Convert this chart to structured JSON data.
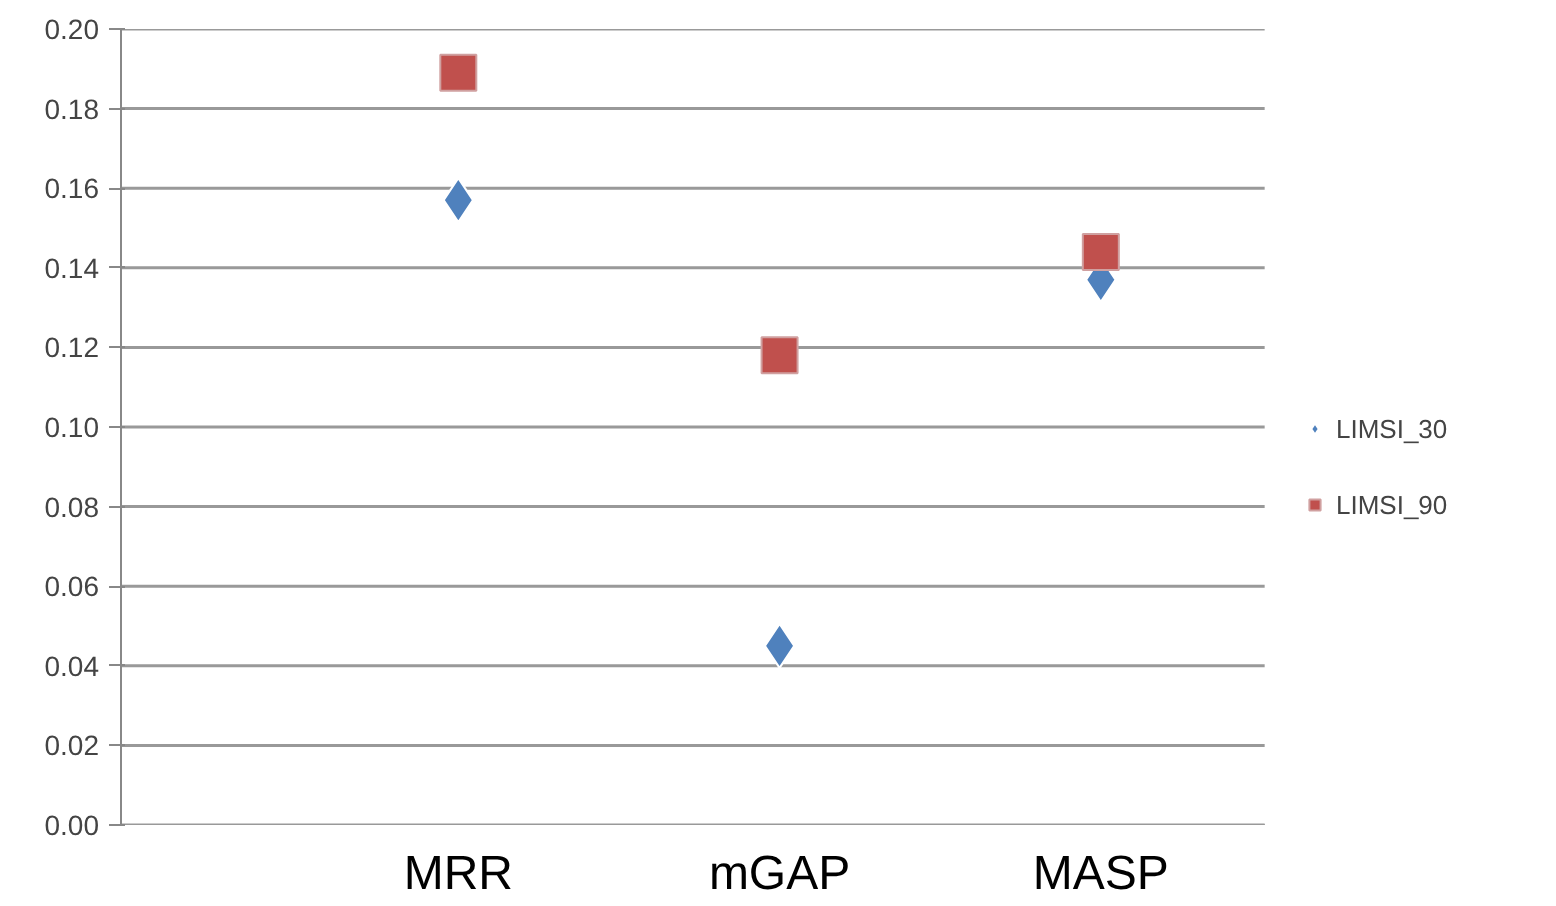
{
  "chart_data": {
    "type": "scatter",
    "categories": [
      "MRR",
      "mGAP",
      "MASP"
    ],
    "series": [
      {
        "name": "LIMSI_30",
        "color": "#4f81bd",
        "marker": "diamond",
        "values": [
          0.157,
          0.045,
          0.137
        ]
      },
      {
        "name": "LIMSI_90",
        "color": "#c0504d",
        "marker": "square",
        "values": [
          0.189,
          0.118,
          0.144
        ]
      }
    ],
    "ylim": [
      0,
      0.2
    ],
    "yticks": [
      {
        "value": 0,
        "label": "0.00"
      },
      {
        "value": 0.02,
        "label": "0.02"
      },
      {
        "value": 0.04,
        "label": "0.04"
      },
      {
        "value": 0.06,
        "label": "0.06"
      },
      {
        "value": 0.08,
        "label": "0.08"
      },
      {
        "value": 0.1,
        "label": "0.10"
      },
      {
        "value": 0.12,
        "label": "0.12"
      },
      {
        "value": 0.14,
        "label": "0.14"
      },
      {
        "value": 0.16,
        "label": "0.16"
      },
      {
        "value": 0.18,
        "label": "0.18"
      },
      {
        "value": 0.2,
        "label": "0.20"
      }
    ],
    "grid": "y",
    "legend": "right"
  }
}
